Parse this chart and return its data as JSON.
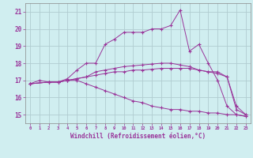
{
  "xlabel": "Windchill (Refroidissement éolien,°C)",
  "background_color": "#d0eef0",
  "grid_color": "#b0ccd0",
  "line_color": "#993399",
  "xlim": [
    -0.5,
    23.5
  ],
  "ylim": [
    14.5,
    21.5
  ],
  "yticks": [
    15,
    16,
    17,
    18,
    19,
    20,
    21
  ],
  "xticks": [
    0,
    1,
    2,
    3,
    4,
    5,
    6,
    7,
    8,
    9,
    10,
    11,
    12,
    13,
    14,
    15,
    16,
    17,
    18,
    19,
    20,
    21,
    22,
    23
  ],
  "curves": [
    {
      "x": [
        0,
        1,
        2,
        3,
        4,
        5,
        6,
        7,
        8,
        9,
        10,
        11,
        12,
        13,
        14,
        15,
        16,
        17,
        18,
        19,
        20,
        21,
        22,
        23
      ],
      "y": [
        16.8,
        17.0,
        16.9,
        16.9,
        17.1,
        17.6,
        18.0,
        18.0,
        19.1,
        19.4,
        19.8,
        19.8,
        19.8,
        20.0,
        20.0,
        20.2,
        21.1,
        18.7,
        19.1,
        18.0,
        17.0,
        15.5,
        15.0,
        14.9
      ]
    },
    {
      "x": [
        0,
        2,
        3,
        4,
        5,
        6,
        7,
        8,
        9,
        10,
        11,
        12,
        13,
        14,
        15,
        16,
        17,
        18,
        19,
        20,
        21,
        22,
        23
      ],
      "y": [
        16.8,
        16.9,
        16.9,
        17.0,
        17.1,
        17.2,
        17.5,
        17.6,
        17.7,
        17.8,
        17.85,
        17.9,
        17.95,
        18.0,
        18.0,
        17.9,
        17.8,
        17.6,
        17.5,
        17.4,
        17.2,
        15.5,
        15.0
      ]
    },
    {
      "x": [
        0,
        2,
        3,
        4,
        5,
        6,
        7,
        8,
        9,
        10,
        11,
        12,
        13,
        14,
        15,
        16,
        17,
        18,
        19,
        20,
        21,
        22,
        23
      ],
      "y": [
        16.8,
        16.9,
        16.9,
        17.0,
        17.1,
        17.2,
        17.3,
        17.4,
        17.5,
        17.5,
        17.6,
        17.6,
        17.65,
        17.7,
        17.7,
        17.7,
        17.7,
        17.6,
        17.5,
        17.5,
        17.2,
        15.3,
        15.0
      ]
    },
    {
      "x": [
        0,
        2,
        3,
        4,
        5,
        6,
        7,
        8,
        9,
        10,
        11,
        12,
        13,
        14,
        15,
        16,
        17,
        18,
        19,
        20,
        21,
        22,
        23
      ],
      "y": [
        16.8,
        16.9,
        16.9,
        17.0,
        17.0,
        16.8,
        16.6,
        16.4,
        16.2,
        16.0,
        15.8,
        15.7,
        15.5,
        15.4,
        15.3,
        15.3,
        15.2,
        15.2,
        15.1,
        15.1,
        15.0,
        15.0,
        14.9
      ]
    }
  ]
}
